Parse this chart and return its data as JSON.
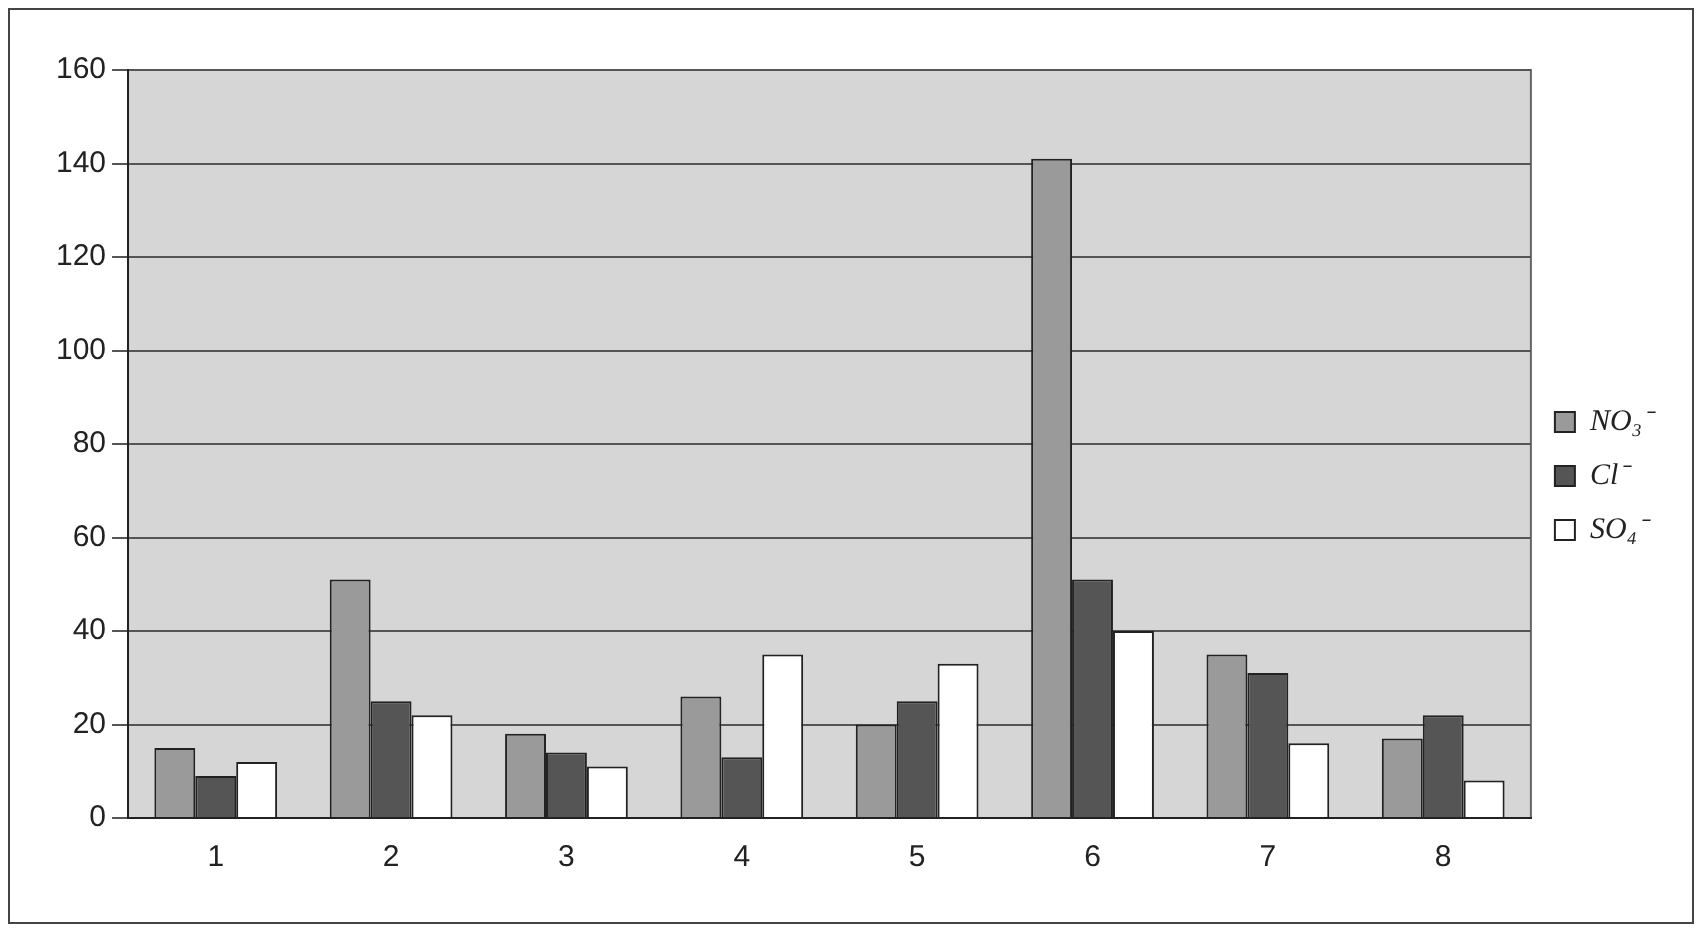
{
  "chart_data": {
    "type": "bar",
    "categories": [
      "1",
      "2",
      "3",
      "4",
      "5",
      "6",
      "7",
      "8"
    ],
    "series": [
      {
        "name": "NO₃⁻",
        "color": "#9a9a9a",
        "values": [
          15,
          51,
          18,
          26,
          20,
          141,
          35,
          17
        ]
      },
      {
        "name": "Cl⁻",
        "color": "#555555",
        "values": [
          9,
          25,
          14,
          13,
          25,
          51,
          31,
          22
        ]
      },
      {
        "name": "SO₄⁻",
        "color": "#ffffff",
        "values": [
          12,
          22,
          11,
          35,
          33,
          40,
          16,
          8
        ]
      }
    ],
    "ylim": [
      0,
      160
    ],
    "yticks": [
      0,
      20,
      40,
      60,
      80,
      100,
      120,
      140,
      160
    ],
    "grid": "y",
    "legend": "right"
  }
}
